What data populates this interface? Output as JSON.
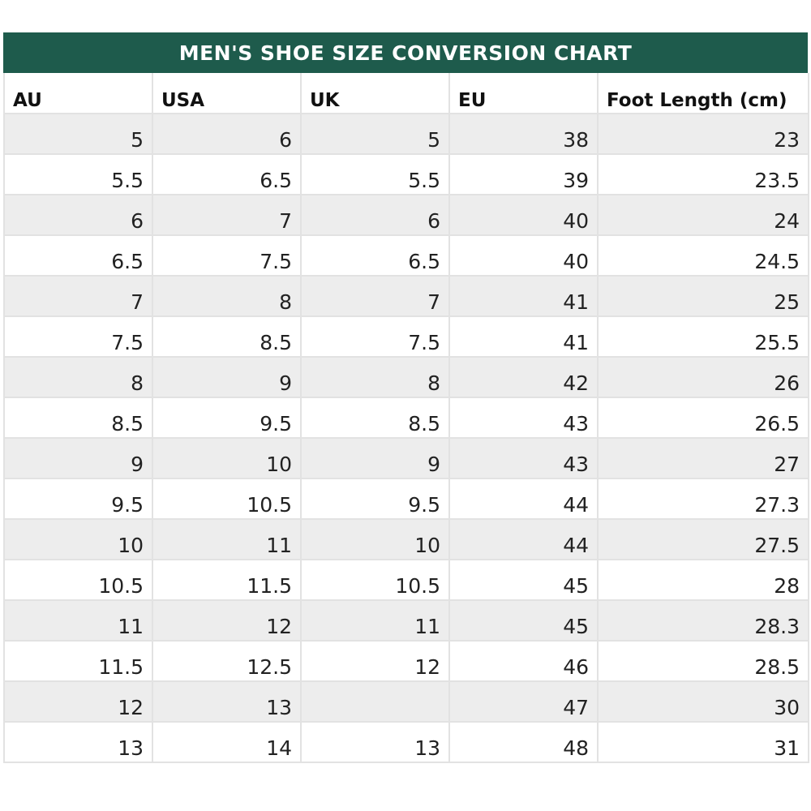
{
  "title": "MEN'S SHOE SIZE CONVERSION CHART",
  "colors": {
    "header_bg": "#1e5b4c",
    "header_text": "#ffffff",
    "stripe": "#ededed",
    "grid": "#e2e2e2"
  },
  "columns": [
    "AU",
    "USA",
    "UK",
    "EU",
    "Foot Length (cm)"
  ],
  "rows": [
    [
      "5",
      "6",
      "5",
      "38",
      "23"
    ],
    [
      "5.5",
      "6.5",
      "5.5",
      "39",
      "23.5"
    ],
    [
      "6",
      "7",
      "6",
      "40",
      "24"
    ],
    [
      "6.5",
      "7.5",
      "6.5",
      "40",
      "24.5"
    ],
    [
      "7",
      "8",
      "7",
      "41",
      "25"
    ],
    [
      "7.5",
      "8.5",
      "7.5",
      "41",
      "25.5"
    ],
    [
      "8",
      "9",
      "8",
      "42",
      "26"
    ],
    [
      "8.5",
      "9.5",
      "8.5",
      "43",
      "26.5"
    ],
    [
      "9",
      "10",
      "9",
      "43",
      "27"
    ],
    [
      "9.5",
      "10.5",
      "9.5",
      "44",
      "27.3"
    ],
    [
      "10",
      "11",
      "10",
      "44",
      "27.5"
    ],
    [
      "10.5",
      "11.5",
      "10.5",
      "45",
      "28"
    ],
    [
      "11",
      "12",
      "11",
      "45",
      "28.3"
    ],
    [
      "11.5",
      "12.5",
      "12",
      "46",
      "28.5"
    ],
    [
      "12",
      "13",
      "",
      "47",
      "30"
    ],
    [
      "13",
      "14",
      "13",
      "48",
      "31"
    ]
  ]
}
